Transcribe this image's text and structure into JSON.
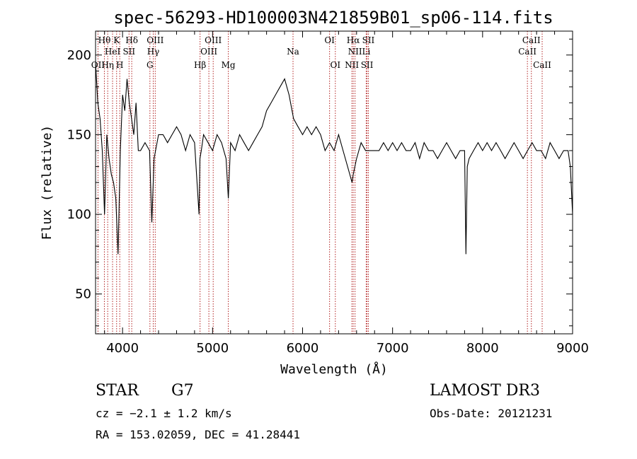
{
  "chart_data": {
    "type": "line",
    "title": "spec-56293-HD100003N421859B01_sp06-114.fits",
    "xlabel": "Wavelength (Å)",
    "ylabel": "Flux (relative)",
    "xlim": [
      3700,
      9000
    ],
    "ylim": [
      25,
      215
    ],
    "x_ticks": [
      4000,
      5000,
      6000,
      7000,
      8000,
      9000
    ],
    "y_ticks": [
      50,
      100,
      150,
      200
    ],
    "x_tick_labels": [
      "4000",
      "5000",
      "6000",
      "7000",
      "8000",
      "9000"
    ],
    "y_tick_labels": [
      "50",
      "100",
      "150",
      "200"
    ],
    "grid": false,
    "series": [
      {
        "color": "#000000",
        "x": [
          3700,
          3725,
          3750,
          3775,
          3800,
          3825,
          3850,
          3875,
          3900,
          3925,
          3950,
          3975,
          4000,
          4025,
          4050,
          4075,
          4100,
          4125,
          4150,
          4175,
          4200,
          4250,
          4300,
          4325,
          4350,
          4400,
          4450,
          4500,
          4550,
          4600,
          4650,
          4700,
          4750,
          4800,
          4850,
          4860,
          4875,
          4900,
          4950,
          5000,
          5050,
          5100,
          5150,
          5175,
          5200,
          5250,
          5300,
          5350,
          5400,
          5450,
          5500,
          5550,
          5600,
          5650,
          5700,
          5750,
          5800,
          5850,
          5900,
          5950,
          6000,
          6050,
          6100,
          6150,
          6200,
          6250,
          6300,
          6350,
          6400,
          6450,
          6500,
          6550,
          6563,
          6600,
          6650,
          6700,
          6750,
          6800,
          6850,
          6900,
          6950,
          7000,
          7050,
          7100,
          7150,
          7200,
          7250,
          7300,
          7350,
          7400,
          7450,
          7500,
          7550,
          7600,
          7650,
          7700,
          7750,
          7800,
          7815,
          7830,
          7850,
          7900,
          7950,
          8000,
          8050,
          8100,
          8150,
          8200,
          8250,
          8300,
          8350,
          8400,
          8450,
          8500,
          8550,
          8600,
          8650,
          8700,
          8750,
          8800,
          8850,
          8900,
          8950,
          8975,
          9000
        ],
        "y": [
          195,
          170,
          160,
          140,
          100,
          150,
          135,
          125,
          120,
          110,
          75,
          140,
          175,
          165,
          185,
          170,
          160,
          150,
          170,
          140,
          140,
          145,
          140,
          95,
          135,
          150,
          150,
          145,
          150,
          155,
          150,
          140,
          150,
          145,
          100,
          135,
          140,
          150,
          145,
          140,
          150,
          145,
          135,
          110,
          145,
          140,
          150,
          145,
          140,
          145,
          150,
          155,
          165,
          170,
          175,
          180,
          185,
          175,
          160,
          155,
          150,
          155,
          150,
          155,
          150,
          140,
          145,
          140,
          150,
          140,
          130,
          120,
          125,
          135,
          145,
          140,
          140,
          140,
          140,
          145,
          140,
          145,
          140,
          145,
          140,
          140,
          145,
          135,
          145,
          140,
          140,
          135,
          140,
          145,
          140,
          135,
          140,
          140,
          75,
          130,
          135,
          140,
          145,
          140,
          145,
          140,
          145,
          140,
          135,
          140,
          145,
          140,
          135,
          140,
          145,
          140,
          140,
          135,
          145,
          140,
          135,
          140,
          140,
          130,
          100
        ]
      }
    ],
    "lines": [
      {
        "label": "Hθ",
        "x": 3798,
        "row": 1
      },
      {
        "label": "OII",
        "x": 3727,
        "row": 3
      },
      {
        "label": "Hη",
        "x": 3835,
        "row": 3
      },
      {
        "label": "HeI",
        "x": 3889,
        "row": 2
      },
      {
        "label": "K",
        "x": 3934,
        "row": 1
      },
      {
        "label": "H",
        "x": 3969,
        "row": 3
      },
      {
        "label": "SII",
        "x": 4072,
        "row": 2
      },
      {
        "label": "Hδ",
        "x": 4102,
        "row": 1
      },
      {
        "label": "G",
        "x": 4304,
        "row": 3
      },
      {
        "label": "Hγ",
        "x": 4341,
        "row": 2
      },
      {
        "label": "OIII",
        "x": 4363,
        "row": 1
      },
      {
        "label": "Hβ",
        "x": 4861,
        "row": 3
      },
      {
        "label": "OIII",
        "x": 4959,
        "row": 2
      },
      {
        "label": "OIII",
        "x": 5007,
        "row": 1
      },
      {
        "label": "Mg",
        "x": 5175,
        "row": 3
      },
      {
        "label": "Na",
        "x": 5894,
        "row": 2
      },
      {
        "label": "OI",
        "x": 6300,
        "row": 1
      },
      {
        "label": "OI",
        "x": 6364,
        "row": 3
      },
      {
        "label": "NII",
        "x": 6548,
        "row": 3
      },
      {
        "label": "Hα",
        "x": 6563,
        "row": 1
      },
      {
        "label": "NII",
        "x": 6583,
        "row": 2
      },
      {
        "label": "Li",
        "x": 6707,
        "row": 2
      },
      {
        "label": "SII",
        "x": 6716,
        "row": 3
      },
      {
        "label": "SII",
        "x": 6731,
        "row": 1
      },
      {
        "label": "CaII",
        "x": 8498,
        "row": 2
      },
      {
        "label": "CaII",
        "x": 8542,
        "row": 1
      },
      {
        "label": "CaII",
        "x": 8662,
        "row": 3
      }
    ],
    "line_marker_color": "#b22222"
  },
  "info": {
    "object_class": "STAR",
    "subclass": "G7",
    "survey": "LAMOST DR3",
    "cz": "cz = −2.1 ± 1.2 km/s",
    "obs_date": "Obs-Date: 20121231",
    "coords": "RA = 153.02059, DEC =  41.28441"
  }
}
